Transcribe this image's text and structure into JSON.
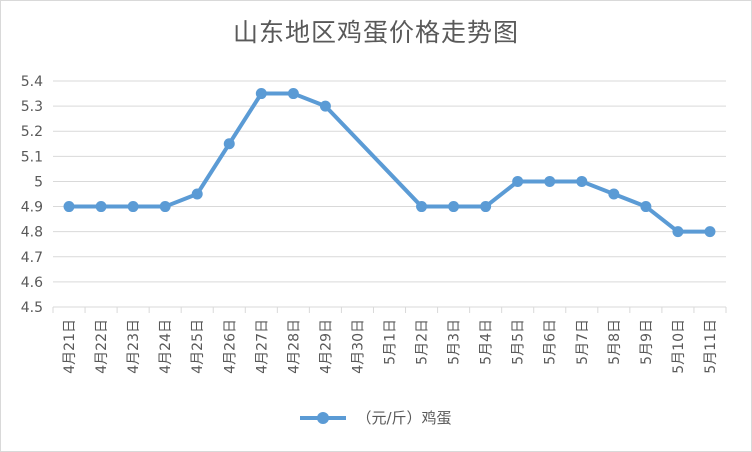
{
  "colors": {
    "series": "#5b9bd5",
    "gridline": "#d9d9d9",
    "text": "#595959"
  },
  "chart_data": {
    "type": "line",
    "title": "山东地区鸡蛋价格走势图",
    "xlabel": "",
    "ylabel": "",
    "categories": [
      "4月21日",
      "4月22日",
      "4月23日",
      "4月24日",
      "4月25日",
      "4月26日",
      "4月27日",
      "4月28日",
      "4月29日",
      "4月30日",
      "5月1日",
      "5月2日",
      "5月3日",
      "5月4日",
      "5月5日",
      "5月6日",
      "5月7日",
      "5月8日",
      "5月9日",
      "5月10日",
      "5月11日"
    ],
    "ylim": [
      4.5,
      5.4
    ],
    "yticks": [
      "4.5",
      "4.6",
      "4.7",
      "4.8",
      "4.9",
      "5",
      "5.1",
      "5.2",
      "5.3",
      "5.4"
    ],
    "grid": true,
    "legend_position": "bottom",
    "series": [
      {
        "name": "（元/斤）鸡蛋",
        "values": [
          4.9,
          4.9,
          4.9,
          4.9,
          4.95,
          5.15,
          5.35,
          5.35,
          5.3,
          null,
          null,
          4.9,
          4.9,
          4.9,
          5.0,
          5.0,
          5.0,
          4.95,
          4.9,
          4.8,
          4.8
        ]
      }
    ]
  }
}
